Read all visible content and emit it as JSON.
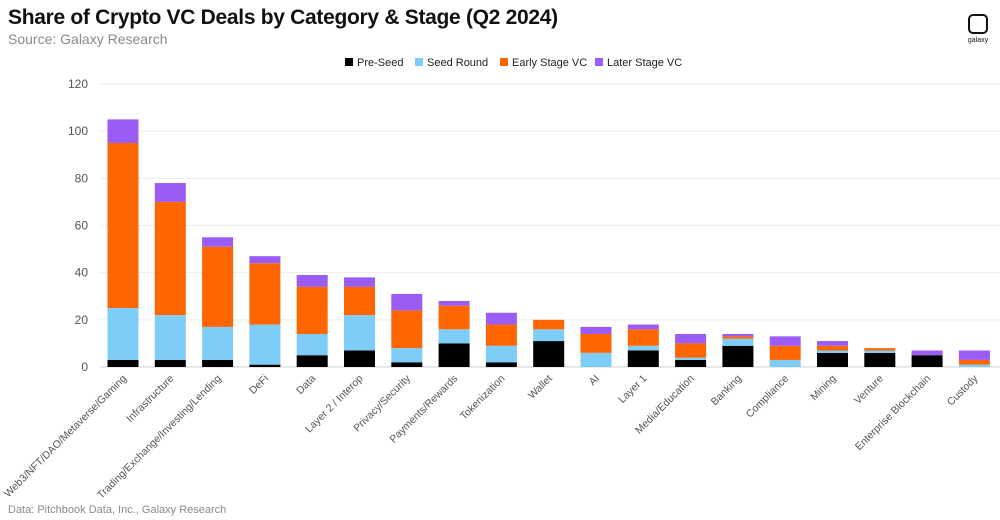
{
  "chart_data": {
    "type": "bar",
    "stacked": true,
    "title": "Share of Crypto VC Deals by Category & Stage (Q2 2024)",
    "subtitle": "Source: Galaxy Research",
    "footer": "Data: Pitchbook Data, Inc., Galaxy Research",
    "logo_text": "galaxy",
    "legend_position": "top",
    "grid": true,
    "ylim": [
      0,
      120
    ],
    "yticks": [
      0,
      20,
      40,
      60,
      80,
      100,
      120
    ],
    "categories": [
      "Web3/NFT/DAO/Metaverse/Gaming",
      "Infrastructure",
      "Trading/Exchange/Investing/Lending",
      "DeFi",
      "Data",
      "Layer 2 / Interop",
      "Privacy/Security",
      "Payments/Rewards",
      "Tokenization",
      "Wallet",
      "AI",
      "Layer 1",
      "Media/Education",
      "Banking",
      "Compliance",
      "Mining",
      "Venture",
      "Enterprise Blockchain",
      "Custody"
    ],
    "series": [
      {
        "name": "Pre-Seed",
        "color": "#000000",
        "values": [
          3,
          3,
          3,
          1,
          5,
          7,
          2,
          10,
          2,
          11,
          0,
          7,
          3,
          9,
          0,
          6,
          6,
          5,
          0
        ]
      },
      {
        "name": "Seed Round",
        "color": "#7dcdf8",
        "values": [
          22,
          19,
          14,
          17,
          9,
          15,
          6,
          6,
          7,
          5,
          6,
          2,
          1,
          3,
          3,
          1,
          1,
          0,
          1
        ]
      },
      {
        "name": "Early Stage VC",
        "color": "#ff6600",
        "values": [
          70,
          48,
          34,
          26,
          20,
          12,
          16,
          10,
          9,
          4,
          8,
          7,
          6,
          1,
          6,
          2,
          1,
          0,
          2
        ]
      },
      {
        "name": "Later Stage VC",
        "color": "#9b5cf6",
        "values": [
          10,
          8,
          4,
          3,
          5,
          4,
          7,
          2,
          5,
          0,
          3,
          2,
          4,
          1,
          4,
          2,
          0,
          2,
          4
        ]
      }
    ]
  }
}
